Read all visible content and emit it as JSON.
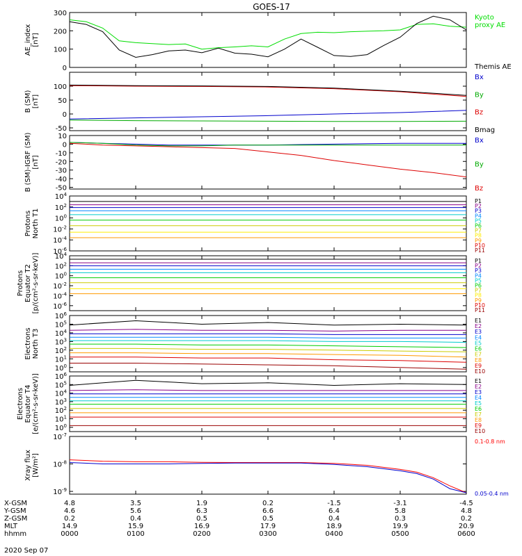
{
  "title": "GOES-17",
  "date_label": "2020 Sep 07",
  "ephemeris": {
    "row_labels": [
      "X-GSM",
      "Y-GSM",
      "Z-GSM",
      "MLT",
      "hhmm"
    ],
    "columns": [
      {
        "x_gsm": "4.8",
        "y_gsm": "4.6",
        "z_gsm": "0.2",
        "mlt": "14.9",
        "hhmm": "0000"
      },
      {
        "x_gsm": "3.5",
        "y_gsm": "5.6",
        "z_gsm": "0.4",
        "mlt": "15.9",
        "hhmm": "0100"
      },
      {
        "x_gsm": "1.9",
        "y_gsm": "6.3",
        "z_gsm": "0.5",
        "mlt": "16.9",
        "hhmm": "0200"
      },
      {
        "x_gsm": "0.2",
        "y_gsm": "6.6",
        "z_gsm": "0.5",
        "mlt": "17.9",
        "hhmm": "0300"
      },
      {
        "x_gsm": "-1.5",
        "y_gsm": "6.4",
        "z_gsm": "0.4",
        "mlt": "18.9",
        "hhmm": "0400"
      },
      {
        "x_gsm": "-3.1",
        "y_gsm": "5.8",
        "z_gsm": "0.3",
        "mlt": "19.9",
        "hhmm": "0500"
      },
      {
        "x_gsm": "-4.5",
        "y_gsm": "4.8",
        "z_gsm": "0.2",
        "mlt": "20.9",
        "hhmm": "0600"
      }
    ]
  },
  "chart_data": [
    {
      "type": "line",
      "ylabel": "AE_index\n[nT]",
      "ylim": [
        0,
        300
      ],
      "yscale": "linear",
      "yticks": [
        0,
        100,
        200,
        300
      ],
      "ytick_labels": [
        "0",
        "100",
        "200",
        "300"
      ],
      "x": [
        0.0,
        0.25,
        0.5,
        0.75,
        1.0,
        1.25,
        1.5,
        1.75,
        2.0,
        2.25,
        2.5,
        2.75,
        3.0,
        3.25,
        3.5,
        3.75,
        4.0,
        4.25,
        4.5,
        4.75,
        5.0,
        5.25,
        5.5,
        5.75,
        6.0
      ],
      "series": [
        {
          "name": "Kyoto\nproxy AE",
          "color": "#00dd00",
          "values": [
            260,
            250,
            215,
            145,
            135,
            130,
            125,
            128,
            100,
            108,
            112,
            118,
            112,
            155,
            185,
            192,
            190,
            195,
            198,
            200,
            205,
            235,
            238,
            225,
            220
          ]
        },
        {
          "name": "Themis AE",
          "color": "#000000",
          "values": [
            250,
            235,
            195,
            95,
            55,
            70,
            90,
            95,
            80,
            105,
            78,
            72,
            58,
            100,
            155,
            110,
            65,
            60,
            70,
            120,
            165,
            240,
            280,
            260,
            205
          ]
        }
      ]
    },
    {
      "type": "line",
      "ylabel": "B (SM)\n[nT]",
      "ylim": [
        -60,
        150
      ],
      "yscale": "linear",
      "yticks": [
        -50,
        0,
        50,
        100
      ],
      "ytick_labels": [
        "-50",
        "0",
        "50",
        "100"
      ],
      "x": [
        0,
        1,
        2,
        3,
        4,
        5,
        6
      ],
      "series": [
        {
          "name": "Bx",
          "color": "#0000cc",
          "values": [
            -18,
            -14,
            -10,
            -6,
            0,
            5,
            13
          ]
        },
        {
          "name": "By",
          "color": "#00aa00",
          "values": [
            -22,
            -24,
            -25,
            -26,
            -27,
            -27,
            -26
          ]
        },
        {
          "name": "Bz",
          "color": "#dd0000",
          "values": [
            102,
            100,
            99,
            97,
            91,
            80,
            63
          ]
        },
        {
          "name": "Bmag",
          "color": "#000000",
          "values": [
            104,
            102,
            101,
            99,
            93,
            82,
            67
          ]
        }
      ]
    },
    {
      "type": "line",
      "ylabel": "B (SM)-IGRF (SM)\n[nT]",
      "ylim": [
        -52,
        10
      ],
      "yscale": "linear",
      "yticks": [
        -50,
        -40,
        -30,
        -20,
        -10,
        0,
        10
      ],
      "ytick_labels": [
        "-50",
        "-40",
        "-30",
        "-20",
        "-10",
        "0",
        "10"
      ],
      "x": [
        0,
        0.5,
        1,
        1.5,
        2,
        2.5,
        3,
        3.5,
        4,
        4.5,
        5,
        5.5,
        6
      ],
      "series": [
        {
          "name": "Bx",
          "color": "#0000cc",
          "values": [
            2,
            1,
            0,
            -1,
            -1,
            -1,
            -1,
            -0.5,
            0,
            0.5,
            1,
            1,
            1
          ]
        },
        {
          "name": "By",
          "color": "#00aa00",
          "values": [
            2,
            1,
            -1,
            -2,
            -2,
            -1,
            -1,
            -1,
            -1,
            -1,
            -1,
            -1,
            -1
          ]
        },
        {
          "name": "Bz",
          "color": "#dd0000",
          "values": [
            1,
            -1,
            -2,
            -3,
            -4,
            -5,
            -9,
            -13,
            -19,
            -24,
            -29,
            -33,
            -38
          ]
        }
      ]
    },
    {
      "type": "line",
      "ylabel": "Protons\nNorth T1",
      "ylim": [
        -6,
        4
      ],
      "yscale": "log",
      "yticks": [
        4,
        2,
        0,
        -2,
        -4,
        -6
      ],
      "ytick_labels": [
        "10^4",
        "10^2",
        "10^0",
        "10^-2",
        "10^-4",
        "10^-6"
      ],
      "x": [
        0,
        6
      ],
      "series": [
        {
          "name": "P1",
          "color": "#000000",
          "values": [
            3.0,
            3.0
          ]
        },
        {
          "name": "P2",
          "color": "#880088",
          "values": [
            2.4,
            2.4
          ]
        },
        {
          "name": "P3",
          "color": "#0000cc",
          "values": [
            1.9,
            1.9
          ]
        },
        {
          "name": "P4",
          "color": "#0088ff",
          "values": [
            1.3,
            1.3
          ]
        },
        {
          "name": "P5",
          "color": "#00cccc",
          "values": [
            0.6,
            0.6
          ]
        },
        {
          "name": "P6",
          "color": "#00cc00",
          "values": [
            -0.4,
            -0.4
          ]
        },
        {
          "name": "P7",
          "color": "#cccc00",
          "values": [
            -1.4,
            -1.4
          ]
        },
        {
          "name": "P8",
          "color": "#ffee00",
          "values": [
            -2.6,
            -2.6
          ]
        },
        {
          "name": "P9",
          "color": "#ff9900",
          "values": [
            -3.6,
            -3.6
          ]
        },
        {
          "name": "P10",
          "color": "#dd0000",
          "values": [
            null,
            null
          ]
        },
        {
          "name": "P11",
          "color": "#990000",
          "values": [
            null,
            null
          ]
        }
      ]
    },
    {
      "type": "line",
      "ylabel": "Protons\nEquator T2\n[p/(cm²-s-sr-keV)]",
      "ylim": [
        -7,
        4
      ],
      "yscale": "log",
      "yticks": [
        4,
        2,
        0,
        -2,
        -4,
        -6
      ],
      "ytick_labels": [
        "10^4",
        "10^2",
        "10^0",
        "10^-2",
        "10^-4",
        "10^-6"
      ],
      "x": [
        0,
        6
      ],
      "series": [
        {
          "name": "P1",
          "color": "#000000",
          "values": [
            3.3,
            3.3
          ]
        },
        {
          "name": "P2",
          "color": "#880088",
          "values": [
            2.6,
            2.6
          ]
        },
        {
          "name": "P3",
          "color": "#0000cc",
          "values": [
            2.0,
            2.0
          ]
        },
        {
          "name": "P4",
          "color": "#0088ff",
          "values": [
            1.3,
            1.3
          ]
        },
        {
          "name": "P5",
          "color": "#00cccc",
          "values": [
            0.6,
            0.6
          ]
        },
        {
          "name": "P6",
          "color": "#00cc00",
          "values": [
            -0.4,
            -0.4
          ]
        },
        {
          "name": "P7",
          "color": "#cccc00",
          "values": [
            -1.4,
            -1.4
          ]
        },
        {
          "name": "P8",
          "color": "#ffee00",
          "values": [
            -2.6,
            -2.6
          ]
        },
        {
          "name": "P9",
          "color": "#ff9900",
          "values": [
            -3.6,
            -3.6
          ]
        },
        {
          "name": "P10",
          "color": "#dd0000",
          "values": [
            null,
            null
          ]
        },
        {
          "name": "P11",
          "color": "#990000",
          "values": [
            null,
            null
          ]
        }
      ]
    },
    {
      "type": "line",
      "ylabel": "Electrons\nNorth T3",
      "ylim": [
        -0.5,
        6
      ],
      "yscale": "log",
      "yticks": [
        0,
        1,
        2,
        3,
        4,
        5,
        6
      ],
      "ytick_labels": [
        "10^0",
        "10^1",
        "10^2",
        "10^3",
        "10^4",
        "10^5",
        "10^6"
      ],
      "x": [
        0,
        1,
        2,
        3,
        4,
        5,
        6
      ],
      "series": [
        {
          "name": "E1",
          "color": "#000000",
          "values": [
            4.9,
            5.4,
            5.0,
            5.2,
            4.9,
            5.0,
            4.9
          ]
        },
        {
          "name": "E2",
          "color": "#880088",
          "values": [
            4.3,
            4.4,
            4.3,
            4.3,
            4.2,
            4.3,
            4.3
          ]
        },
        {
          "name": "E3",
          "color": "#0000cc",
          "values": [
            3.9,
            3.9,
            3.9,
            3.9,
            3.8,
            3.8,
            3.8
          ]
        },
        {
          "name": "E4",
          "color": "#0088ff",
          "values": [
            3.5,
            3.5,
            3.5,
            3.5,
            3.4,
            3.4,
            3.4
          ]
        },
        {
          "name": "E5",
          "color": "#00cccc",
          "values": [
            3.1,
            3.1,
            3.1,
            3.1,
            3.0,
            3.0,
            2.9
          ]
        },
        {
          "name": "E6",
          "color": "#00cc00",
          "values": [
            2.7,
            2.7,
            2.6,
            2.6,
            2.5,
            2.4,
            2.3
          ]
        },
        {
          "name": "E7",
          "color": "#cccc00",
          "values": [
            2.2,
            2.2,
            2.1,
            2.1,
            2.0,
            1.9,
            1.8
          ]
        },
        {
          "name": "E8",
          "color": "#ff9900",
          "values": [
            1.7,
            1.7,
            1.6,
            1.6,
            1.5,
            1.4,
            1.2
          ]
        },
        {
          "name": "E9",
          "color": "#dd0000",
          "values": [
            1.2,
            1.2,
            1.1,
            1.1,
            0.9,
            0.8,
            0.6
          ]
        },
        {
          "name": "E10",
          "color": "#990000",
          "values": [
            0.5,
            0.5,
            0.4,
            0.3,
            0.2,
            0.0,
            -0.2
          ]
        }
      ]
    },
    {
      "type": "line",
      "ylabel": "Electrons\nEquator T4\n[e/(cm²-s-sr-keV)]",
      "ylim": [
        -0.5,
        6
      ],
      "yscale": "log",
      "yticks": [
        0,
        1,
        2,
        3,
        4,
        5,
        6
      ],
      "ytick_labels": [
        "10^0",
        "10^1",
        "10^2",
        "10^3",
        "10^4",
        "10^5",
        "10^6"
      ],
      "x": [
        0,
        1,
        2,
        3,
        4,
        5,
        6
      ],
      "series": [
        {
          "name": "E1",
          "color": "#000000",
          "values": [
            4.9,
            5.5,
            5.1,
            5.2,
            4.9,
            5.1,
            5.0
          ]
        },
        {
          "name": "E2",
          "color": "#880088",
          "values": [
            4.3,
            4.4,
            4.3,
            4.3,
            4.3,
            4.3,
            4.3
          ]
        },
        {
          "name": "E3",
          "color": "#0000cc",
          "values": [
            3.9,
            3.9,
            3.9,
            3.9,
            3.9,
            3.9,
            3.9
          ]
        },
        {
          "name": "E4",
          "color": "#0088ff",
          "values": [
            3.5,
            3.5,
            3.5,
            3.5,
            3.5,
            3.5,
            3.5
          ]
        },
        {
          "name": "E5",
          "color": "#00cccc",
          "values": [
            3.1,
            3.1,
            3.1,
            3.1,
            3.1,
            3.1,
            3.1
          ]
        },
        {
          "name": "E6",
          "color": "#00cc00",
          "values": [
            2.7,
            2.7,
            2.7,
            2.7,
            2.7,
            2.7,
            2.7
          ]
        },
        {
          "name": "E7",
          "color": "#cccc00",
          "values": [
            2.2,
            2.2,
            2.2,
            2.2,
            2.2,
            2.2,
            2.2
          ]
        },
        {
          "name": "E8",
          "color": "#ff9900",
          "values": [
            1.7,
            1.7,
            1.7,
            1.7,
            1.7,
            1.7,
            1.7
          ]
        },
        {
          "name": "E9",
          "color": "#dd0000",
          "values": [
            1.2,
            1.2,
            1.2,
            1.2,
            1.2,
            1.2,
            1.2
          ]
        },
        {
          "name": "E10",
          "color": "#990000",
          "values": [
            0.2,
            0.2,
            0.2,
            0.2,
            0.2,
            0.2,
            0.2
          ]
        }
      ]
    },
    {
      "type": "line",
      "ylabel": "Xray flux\n[W/m²]",
      "ylim": [
        -9.1,
        -7
      ],
      "yscale": "log",
      "yticks": [
        -7,
        -8,
        -9
      ],
      "ytick_labels": [
        "10^-7",
        "10^-8",
        "10^-9"
      ],
      "x": [
        0,
        0.5,
        1,
        1.5,
        2,
        2.5,
        3,
        3.5,
        4,
        4.5,
        5,
        5.25,
        5.5,
        5.75,
        6
      ],
      "series": [
        {
          "name": "0.1-0.8 nm",
          "color": "#ff0000",
          "values": [
            -7.85,
            -7.9,
            -7.92,
            -7.92,
            -7.94,
            -7.95,
            -7.95,
            -7.95,
            -7.98,
            -8.05,
            -8.2,
            -8.3,
            -8.5,
            -8.8,
            -9.05
          ]
        },
        {
          "name": "0.05-0.4 nm",
          "color": "#0000cc",
          "values": [
            -7.95,
            -8.0,
            -8.0,
            -8.0,
            -7.98,
            -7.97,
            -7.97,
            -7.97,
            -8.02,
            -8.1,
            -8.25,
            -8.35,
            -8.55,
            -8.9,
            -9.05
          ]
        }
      ]
    }
  ]
}
